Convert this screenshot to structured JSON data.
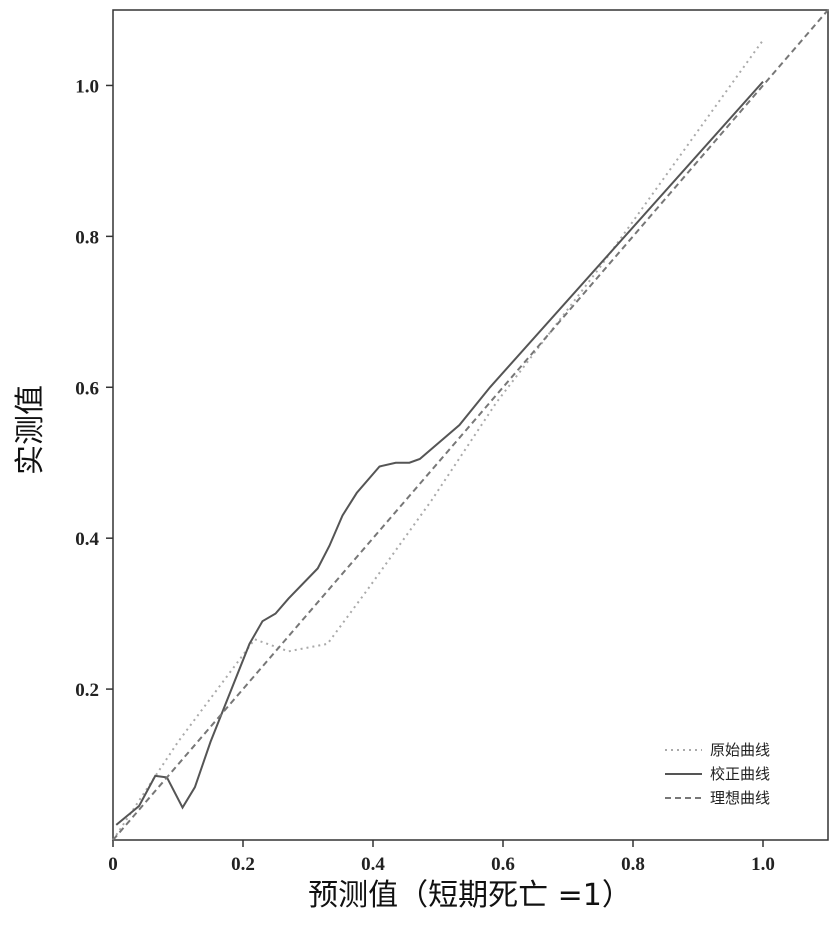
{
  "chart_data": {
    "type": "line",
    "xlabel": "预测值（短期死亡 =1）",
    "ylabel": "实测值",
    "xlim": [
      0,
      1.1
    ],
    "ylim": [
      0,
      1.1
    ],
    "xticks": [
      0,
      0.2,
      0.4,
      0.6,
      0.8,
      {
        "value": 1,
        "label": "1.0"
      }
    ],
    "yticks": [
      0.2,
      0.4,
      0.6,
      0.8,
      {
        "value": 1,
        "label": "1.0"
      }
    ],
    "legend": "bottom-right",
    "series": [
      {
        "name": "原始曲线",
        "color": "#aaaaaa",
        "style": "dotted",
        "x": [
          0,
          0.1,
          0.218,
          0.27,
          0.33,
          0.39,
          0.49,
          0.59,
          0.75,
          0.9,
          1.0
        ],
        "values": [
          0,
          0.13,
          0.266,
          0.25,
          0.26,
          0.33,
          0.45,
          0.58,
          0.76,
          0.94,
          1.06
        ]
      },
      {
        "name": "校正曲线",
        "color": "#555555",
        "style": "solid",
        "x": [
          0.005,
          0.04,
          0.065,
          0.083,
          0.107,
          0.126,
          0.15,
          0.21,
          0.23,
          0.25,
          0.27,
          0.315,
          0.333,
          0.353,
          0.375,
          0.41,
          0.435,
          0.456,
          0.472,
          0.533,
          0.58,
          1.0
        ],
        "values": [
          0.02,
          0.045,
          0.085,
          0.083,
          0.043,
          0.07,
          0.13,
          0.26,
          0.29,
          0.3,
          0.32,
          0.36,
          0.39,
          0.43,
          0.46,
          0.495,
          0.5,
          0.5,
          0.505,
          0.55,
          0.6,
          1.005
        ]
      },
      {
        "name": "理想曲线",
        "color": "#777777",
        "style": "dashed",
        "x": [
          0,
          1.1
        ],
        "values": [
          0,
          1.1
        ]
      }
    ]
  }
}
